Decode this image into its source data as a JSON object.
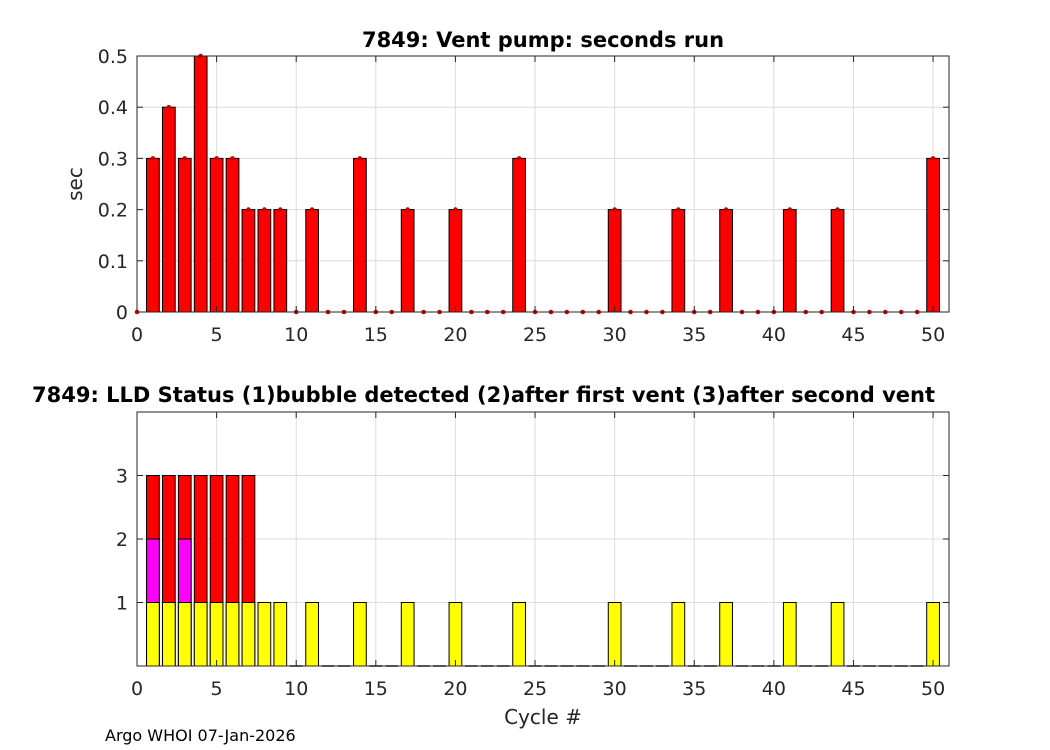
{
  "chart_data": [
    {
      "type": "bar",
      "title": "7849: Vent pump: seconds run",
      "xlabel": "",
      "ylabel": "sec",
      "xlim": [
        0,
        51
      ],
      "ylim": [
        0,
        0.5
      ],
      "xticks": [
        0,
        5,
        10,
        15,
        20,
        25,
        30,
        35,
        40,
        45,
        50
      ],
      "yticks": [
        0,
        0.1,
        0.2,
        0.3,
        0.4,
        0.5
      ],
      "grid": true,
      "bar_color": "#ff0000",
      "marker_color": "#cc0000",
      "x": [
        1,
        2,
        3,
        4,
        5,
        6,
        7,
        8,
        9,
        10,
        11,
        12,
        13,
        14,
        15,
        16,
        17,
        18,
        19,
        20,
        21,
        22,
        23,
        24,
        25,
        26,
        27,
        28,
        29,
        30,
        31,
        32,
        33,
        34,
        35,
        36,
        37,
        38,
        39,
        40,
        41,
        42,
        43,
        44,
        45,
        46,
        47,
        48,
        49,
        50
      ],
      "values": [
        0.3,
        0.4,
        0.3,
        0.5,
        0.3,
        0.3,
        0.2,
        0.2,
        0.2,
        0,
        0.2,
        0,
        0,
        0.3,
        0,
        0,
        0.2,
        0,
        0,
        0.2,
        0,
        0,
        0,
        0.3,
        0,
        0,
        0,
        0,
        0,
        0.2,
        0,
        0,
        0,
        0.2,
        0,
        0,
        0.2,
        0,
        0,
        0,
        0.2,
        0,
        0,
        0.2,
        0,
        0,
        0,
        0,
        0,
        0.3
      ]
    },
    {
      "type": "bar",
      "title": "7849: LLD Status   (1)bubble detected   (2)after first vent  (3)after second vent",
      "xlabel": "Cycle #",
      "ylabel": "",
      "xlim": [
        0,
        51
      ],
      "ylim": [
        0,
        4
      ],
      "xticks": [
        0,
        5,
        10,
        15,
        20,
        25,
        30,
        35,
        40,
        45,
        50
      ],
      "yticks": [
        1,
        2,
        3
      ],
      "grid": true,
      "level_colors": {
        "1": "#ffff00",
        "2": "#ff00ff",
        "3": "#ff0000"
      },
      "x": [
        1,
        2,
        3,
        4,
        5,
        6,
        7,
        8,
        9,
        10,
        11,
        12,
        13,
        14,
        15,
        16,
        17,
        18,
        19,
        20,
        21,
        22,
        23,
        24,
        25,
        26,
        27,
        28,
        29,
        30,
        31,
        32,
        33,
        34,
        35,
        36,
        37,
        38,
        39,
        40,
        41,
        42,
        43,
        44,
        45,
        46,
        47,
        48,
        49,
        50
      ],
      "values": [
        3,
        3,
        3,
        3,
        3,
        3,
        3,
        1,
        1,
        0,
        1,
        0,
        0,
        1,
        0,
        0,
        1,
        0,
        0,
        1,
        0,
        0,
        0,
        1,
        0,
        0,
        0,
        0,
        0,
        1,
        0,
        0,
        0,
        1,
        0,
        0,
        1,
        0,
        0,
        0,
        1,
        0,
        0,
        1,
        0,
        0,
        0,
        0,
        0,
        1
      ],
      "bubble_detected": [
        1,
        1,
        1,
        1,
        1,
        1,
        1,
        1,
        1,
        0,
        1,
        0,
        0,
        1,
        0,
        0,
        1,
        0,
        0,
        1,
        0,
        0,
        0,
        1,
        0,
        0,
        0,
        0,
        0,
        1,
        0,
        0,
        0,
        1,
        0,
        0,
        1,
        0,
        0,
        0,
        1,
        0,
        0,
        1,
        0,
        0,
        0,
        0,
        0,
        1
      ],
      "after_first_vent": [
        1,
        0,
        1,
        0,
        0,
        0,
        0,
        0,
        0,
        0,
        0,
        0,
        0,
        0,
        0,
        0,
        0,
        0,
        0,
        0,
        0,
        0,
        0,
        0,
        0,
        0,
        0,
        0,
        0,
        0,
        0,
        0,
        0,
        0,
        0,
        0,
        0,
        0,
        0,
        0,
        0,
        0,
        0,
        0,
        0,
        0,
        0,
        0,
        0,
        0
      ],
      "after_second_vent": [
        1,
        1,
        1,
        1,
        1,
        1,
        1,
        0,
        0,
        0,
        0,
        0,
        0,
        0,
        0,
        0,
        0,
        0,
        0,
        0,
        0,
        0,
        0,
        0,
        0,
        0,
        0,
        0,
        0,
        0,
        0,
        0,
        0,
        0,
        0,
        0,
        0,
        0,
        0,
        0,
        0,
        0,
        0,
        0,
        0,
        0,
        0,
        0,
        0,
        0
      ]
    }
  ],
  "footer": "Argo WHOI 07-Jan-2026"
}
